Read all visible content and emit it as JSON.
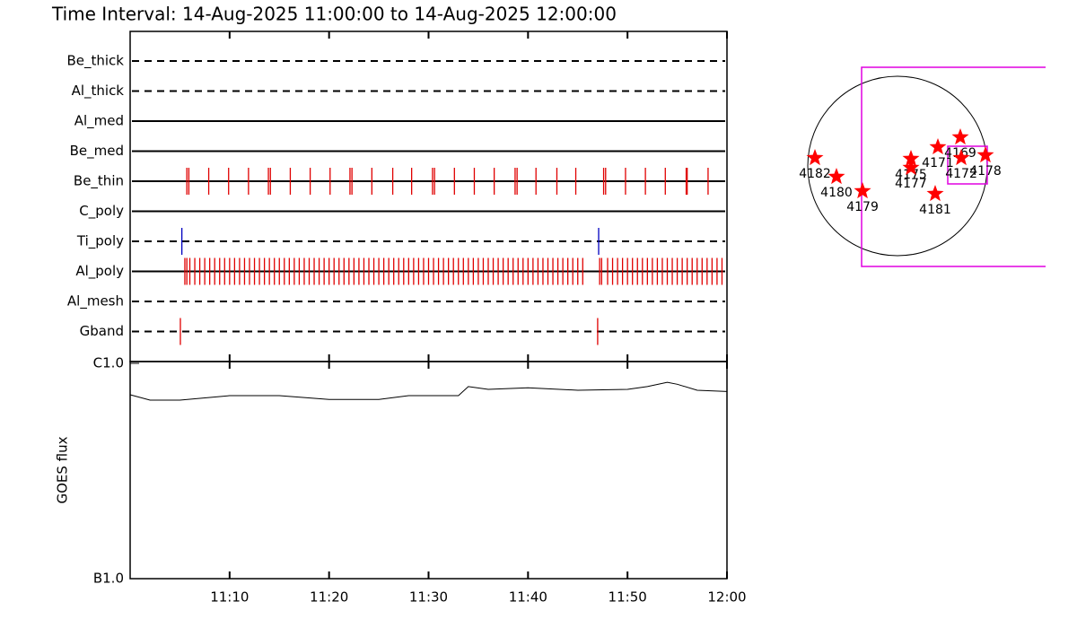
{
  "chart_data": [
    {
      "type": "timeline",
      "title": "Time Interval: 14-Aug-2025 11:00:00 to 14-Aug-2025 12:00:00",
      "series": [
        {
          "name": "Be_thick",
          "style": "dashed",
          "color": "#e00000",
          "values": []
        },
        {
          "name": "Al_thick",
          "style": "dashed",
          "color": "#e00000",
          "values": []
        },
        {
          "name": "Al_med",
          "style": "solid",
          "color": "#e00000",
          "values": []
        },
        {
          "name": "Be_med",
          "style": "solid",
          "color": "#e00000",
          "values": []
        },
        {
          "name": "Be_thin",
          "style": "solid",
          "color": "#e00000",
          "values": [
            5.7,
            5.9,
            7.9,
            9.9,
            11.9,
            13.9,
            14.1,
            16.1,
            18.1,
            20.1,
            22.1,
            22.3,
            24.3,
            26.4,
            28.3,
            30.4,
            30.6,
            32.6,
            34.6,
            36.6,
            38.7,
            38.9,
            40.8,
            42.9,
            44.8,
            47.6,
            47.8,
            49.8,
            51.8,
            53.8,
            55.9,
            56.0,
            58.1
          ]
        },
        {
          "name": "C_poly",
          "style": "solid",
          "color": "#e00000",
          "values": []
        },
        {
          "name": "Ti_poly",
          "style": "dashed",
          "color": "#0000c0",
          "values": [
            5.2,
            47.1
          ]
        },
        {
          "name": "Al_poly",
          "style": "solid",
          "color": "#e00000",
          "values": [
            5.5,
            5.7,
            6.0,
            6.5,
            7.0,
            7.5,
            8.0,
            8.5,
            9.0,
            9.5,
            10.0,
            10.5,
            11.0,
            11.5,
            12.0,
            12.5,
            13.0,
            13.5,
            14.0,
            14.5,
            15.0,
            15.5,
            16.0,
            16.5,
            17.0,
            17.5,
            18.0,
            18.5,
            19.0,
            19.5,
            20.0,
            20.5,
            21.0,
            21.5,
            22.0,
            22.5,
            23.0,
            23.5,
            24.0,
            24.5,
            25.0,
            25.5,
            26.0,
            26.5,
            27.0,
            27.5,
            28.0,
            28.5,
            29.0,
            29.5,
            30.0,
            30.5,
            31.0,
            31.5,
            32.0,
            32.5,
            33.0,
            33.5,
            34.0,
            34.5,
            35.0,
            35.5,
            36.0,
            36.5,
            37.0,
            37.5,
            38.0,
            38.5,
            39.0,
            39.5,
            40.0,
            40.5,
            41.0,
            41.5,
            42.0,
            42.5,
            43.0,
            43.5,
            44.0,
            44.5,
            45.0,
            45.5,
            47.2,
            47.4,
            48.0,
            48.5,
            49.0,
            49.5,
            50.0,
            50.5,
            51.0,
            51.5,
            52.0,
            52.5,
            53.0,
            53.5,
            54.0,
            54.5,
            55.0,
            55.5,
            56.0,
            56.5,
            57.0,
            57.5,
            58.0,
            58.5,
            59.0,
            59.5
          ]
        },
        {
          "name": "Al_mesh",
          "style": "dashed",
          "color": "#e00000",
          "values": []
        },
        {
          "name": "Gband",
          "style": "dashed",
          "color": "#e00000",
          "values": [
            5.05,
            47.0
          ]
        }
      ]
    },
    {
      "type": "line",
      "ylabel": "GOES flux",
      "log_scale": true,
      "color": "#000000",
      "x": [
        0,
        2,
        5,
        10,
        15,
        20,
        25,
        28,
        33,
        34,
        36,
        40,
        45,
        50,
        52,
        54,
        55,
        57,
        60
      ],
      "values": [
        7.15e-07,
        6.75e-07,
        6.75e-07,
        7.08e-07,
        7.08e-07,
        6.8e-07,
        6.8e-07,
        7.08e-07,
        7.08e-07,
        7.8e-07,
        7.57e-07,
        7.7e-07,
        7.5e-07,
        7.57e-07,
        7.8e-07,
        8.17e-07,
        8e-07,
        7.5e-07,
        7.4e-07
      ],
      "xlim": [
        0,
        60
      ],
      "xticks": [
        {
          "value": 10,
          "label": "11:10"
        },
        {
          "value": 20,
          "label": "11:20"
        },
        {
          "value": 30,
          "label": "11:30"
        },
        {
          "value": 40,
          "label": "11:40"
        },
        {
          "value": 50,
          "label": "11:50"
        },
        {
          "value": 60,
          "label": "12:00"
        }
      ],
      "ylim": [
        1e-07,
        1e-06
      ],
      "yticks": [
        {
          "value": 1e-07,
          "label": "B1.0"
        },
        {
          "value": 1e-06,
          "label": "C1.0"
        }
      ]
    },
    {
      "type": "scatter",
      "color": "#ff0000",
      "labels": [
        "4182",
        "4180",
        "4179",
        "4175",
        "4177",
        "4171",
        "4169",
        "4172",
        "4178",
        "4181"
      ],
      "x": [
        -883,
        -653,
        -374,
        144,
        144,
        432,
        672,
        682,
        941,
        403
      ],
      "y": [
        86,
        -115,
        -269,
        77,
        -19,
        202,
        307,
        86,
        115,
        -298
      ]
    }
  ]
}
